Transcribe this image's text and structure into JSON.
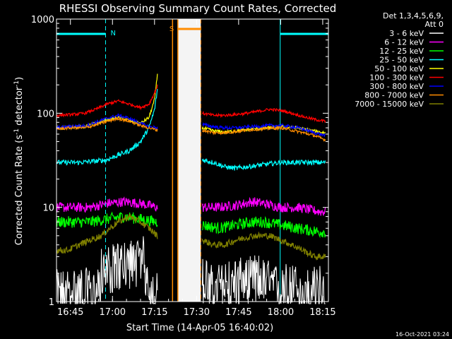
{
  "chart_data": {
    "type": "line",
    "title": "RHESSI Observing Summary Count Rates, Corrected",
    "xlabel": "Start Time (14-Apr-05 16:40:02)",
    "ylabel_prefix": "Corrected Count Rate (s",
    "ylabel_sup1": "-1",
    "ylabel_mid": " detector",
    "ylabel_sup2": "-1",
    "ylabel_suffix": ")",
    "yscale": "log",
    "ylim": [
      1,
      1000
    ],
    "xlim_minutes": [
      0,
      97
    ],
    "y_ticks": [
      {
        "value": 1,
        "label": "1"
      },
      {
        "value": 10,
        "label": "10"
      },
      {
        "value": 100,
        "label": "100"
      },
      {
        "value": 1000,
        "label": "1000"
      }
    ],
    "x_ticks": [
      {
        "minute": 4.97,
        "label": "16:45"
      },
      {
        "minute": 19.97,
        "label": "17:00"
      },
      {
        "minute": 34.97,
        "label": "17:15"
      },
      {
        "minute": 49.97,
        "label": "17:30"
      },
      {
        "minute": 64.97,
        "label": "17:45"
      },
      {
        "minute": 79.97,
        "label": "18:00"
      },
      {
        "minute": 94.97,
        "label": "18:15"
      }
    ],
    "legend_header": [
      "Det 1,3,4,5,6,9,",
      "Att 0"
    ],
    "legend_position": "right",
    "series": [
      {
        "name": "3 - 6 keV",
        "color": "#ffffff",
        "anchors": [
          [
            0,
            1.5
          ],
          [
            10,
            1.6
          ],
          [
            14,
            1.4
          ],
          [
            16,
            2.5
          ],
          [
            22,
            2.9
          ],
          [
            28,
            3.2
          ],
          [
            31,
            3.4
          ],
          [
            33,
            1.6
          ],
          [
            36,
            1.4
          ]
        ],
        "anchors2": [
          [
            52,
            2.2
          ],
          [
            56,
            1.6
          ],
          [
            60,
            1.9
          ],
          [
            66,
            2.0
          ],
          [
            72,
            2.2
          ],
          [
            78,
            1.7
          ],
          [
            84,
            1.8
          ],
          [
            88,
            1.5
          ],
          [
            94,
            1.7
          ],
          [
            96,
            1.5
          ]
        ],
        "noise": 0.55,
        "bars": true
      },
      {
        "name": "6 - 12 keV",
        "color": "#ff00ff",
        "anchors": [
          [
            0,
            10
          ],
          [
            6,
            10
          ],
          [
            12,
            10
          ],
          [
            18,
            11
          ],
          [
            24,
            11.5
          ],
          [
            30,
            11
          ],
          [
            36,
            10
          ]
        ],
        "anchors2": [
          [
            52,
            10
          ],
          [
            58,
            10
          ],
          [
            64,
            10.5
          ],
          [
            70,
            11.5
          ],
          [
            74,
            11
          ],
          [
            80,
            10
          ],
          [
            86,
            10
          ],
          [
            94,
            9
          ],
          [
            96,
            9
          ]
        ],
        "noise": 0.12
      },
      {
        "name": "12 - 25 keV",
        "color": "#00ff00",
        "anchors": [
          [
            0,
            7
          ],
          [
            6,
            7
          ],
          [
            12,
            7
          ],
          [
            18,
            7.5
          ],
          [
            24,
            8
          ],
          [
            30,
            7.5
          ],
          [
            36,
            7
          ]
        ],
        "anchors2": [
          [
            52,
            6.5
          ],
          [
            58,
            6
          ],
          [
            64,
            6.5
          ],
          [
            70,
            7
          ],
          [
            74,
            7
          ],
          [
            80,
            6.5
          ],
          [
            86,
            6
          ],
          [
            94,
            5.5
          ],
          [
            96,
            5.5
          ]
        ],
        "noise": 0.14
      },
      {
        "name": "25 - 50 keV",
        "color": "#00ffff",
        "anchors": [
          [
            0,
            30
          ],
          [
            8,
            30
          ],
          [
            14,
            31
          ],
          [
            18,
            32
          ],
          [
            22,
            36
          ],
          [
            26,
            40
          ],
          [
            30,
            50
          ],
          [
            33,
            70
          ],
          [
            35,
            110
          ],
          [
            36,
            180
          ]
        ],
        "anchors2": [
          [
            52,
            32
          ],
          [
            56,
            30
          ],
          [
            60,
            27
          ],
          [
            64,
            26
          ],
          [
            68,
            27
          ],
          [
            72,
            28
          ],
          [
            76,
            29
          ],
          [
            80,
            30
          ],
          [
            86,
            30
          ],
          [
            90,
            30
          ],
          [
            96,
            30
          ]
        ],
        "noise": 0.06
      },
      {
        "name": "50 - 100 keV",
        "color": "#ffff00",
        "anchors": [
          [
            0,
            70
          ],
          [
            6,
            72
          ],
          [
            10,
            72
          ],
          [
            14,
            78
          ],
          [
            18,
            85
          ],
          [
            22,
            90
          ],
          [
            26,
            84
          ],
          [
            30,
            78
          ],
          [
            33,
            90
          ],
          [
            35,
            140
          ],
          [
            36,
            260
          ]
        ],
        "anchors2": [
          [
            52,
            70
          ],
          [
            56,
            65
          ],
          [
            60,
            63
          ],
          [
            64,
            65
          ],
          [
            70,
            68
          ],
          [
            76,
            70
          ],
          [
            80,
            72
          ],
          [
            86,
            70
          ],
          [
            90,
            66
          ],
          [
            94,
            63
          ],
          [
            96,
            62
          ]
        ],
        "noise": 0.04
      },
      {
        "name": "100 - 300 keV",
        "color": "#ff0000",
        "anchors": [
          [
            0,
            95
          ],
          [
            6,
            97
          ],
          [
            10,
            100
          ],
          [
            14,
            110
          ],
          [
            18,
            125
          ],
          [
            22,
            135
          ],
          [
            26,
            125
          ],
          [
            30,
            115
          ],
          [
            33,
            125
          ],
          [
            35,
            165
          ],
          [
            36,
            195
          ]
        ],
        "anchors2": [
          [
            52,
            100
          ],
          [
            56,
            95
          ],
          [
            60,
            95
          ],
          [
            64,
            97
          ],
          [
            68,
            100
          ],
          [
            72,
            105
          ],
          [
            76,
            110
          ],
          [
            80,
            107
          ],
          [
            84,
            100
          ],
          [
            88,
            92
          ],
          [
            92,
            86
          ],
          [
            96,
            82
          ]
        ],
        "noise": 0.035
      },
      {
        "name": "300 - 800 keV",
        "color": "#0000ff",
        "anchors": [
          [
            0,
            70
          ],
          [
            6,
            73
          ],
          [
            10,
            73
          ],
          [
            14,
            80
          ],
          [
            18,
            88
          ],
          [
            22,
            95
          ],
          [
            26,
            88
          ],
          [
            30,
            78
          ],
          [
            33,
            72
          ],
          [
            36,
            70
          ]
        ],
        "anchors2": [
          [
            52,
            76
          ],
          [
            56,
            72
          ],
          [
            60,
            70
          ],
          [
            64,
            70
          ],
          [
            70,
            72
          ],
          [
            76,
            74
          ],
          [
            80,
            74
          ],
          [
            84,
            72
          ],
          [
            88,
            68
          ],
          [
            92,
            62
          ],
          [
            96,
            58
          ]
        ],
        "noise": 0.04
      },
      {
        "name": "800 - 7000 keV",
        "color": "#ff8c00",
        "anchors": [
          [
            0,
            68
          ],
          [
            6,
            70
          ],
          [
            10,
            70
          ],
          [
            14,
            75
          ],
          [
            18,
            82
          ],
          [
            22,
            88
          ],
          [
            26,
            82
          ],
          [
            30,
            74
          ],
          [
            33,
            70
          ],
          [
            36,
            66
          ]
        ],
        "anchors2": [
          [
            52,
            66
          ],
          [
            56,
            62
          ],
          [
            60,
            62
          ],
          [
            64,
            64
          ],
          [
            70,
            67
          ],
          [
            76,
            69
          ],
          [
            80,
            70
          ],
          [
            84,
            66
          ],
          [
            88,
            62
          ],
          [
            92,
            58
          ],
          [
            96,
            52
          ]
        ],
        "noise": 0.035
      },
      {
        "name": "7000 - 15000 keV",
        "color": "#808000",
        "anchors": [
          [
            0,
            3.5
          ],
          [
            4,
            3.5
          ],
          [
            8,
            4
          ],
          [
            12,
            4.5
          ],
          [
            16,
            5
          ],
          [
            19,
            6
          ],
          [
            22,
            7
          ],
          [
            26,
            8
          ],
          [
            30,
            7
          ],
          [
            33,
            6
          ],
          [
            36,
            5
          ]
        ],
        "anchors2": [
          [
            52,
            4.5
          ],
          [
            56,
            4
          ],
          [
            60,
            4
          ],
          [
            64,
            4.5
          ],
          [
            70,
            5
          ],
          [
            76,
            5
          ],
          [
            80,
            4.5
          ],
          [
            84,
            4
          ],
          [
            88,
            3.5
          ],
          [
            92,
            3
          ],
          [
            96,
            3
          ]
        ],
        "noise": 0.08
      }
    ],
    "annotations": [
      {
        "label": "N",
        "color": "#00ffff",
        "kind": "night",
        "start_minute": 0,
        "end_minute": 17.5
      },
      {
        "kind": "night",
        "color": "#00ffff",
        "start_minute": 79.8,
        "end_minute": 97
      },
      {
        "label": "S",
        "color": "#ff8c00",
        "kind": "saa",
        "start_minute": 43.3,
        "end_minute": 51.5
      },
      {
        "kind": "attenuator",
        "color": "#ff8c00",
        "minute": 41.4
      }
    ],
    "timestamp": "16-Oct-2021 03:24"
  }
}
